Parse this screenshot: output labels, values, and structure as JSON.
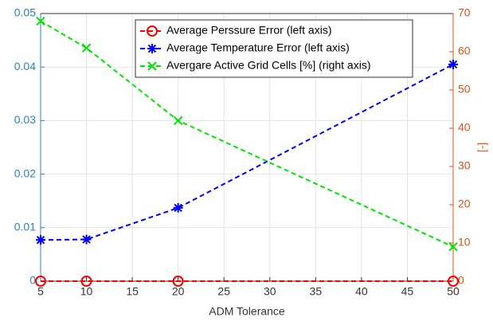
{
  "chart_data": {
    "type": "line",
    "x": [
      5,
      10,
      20,
      50
    ],
    "xlim": [
      5,
      50
    ],
    "xticks": [
      5,
      10,
      15,
      20,
      25,
      30,
      35,
      40,
      45,
      50
    ],
    "ylim": [
      0,
      0.05
    ],
    "yticks": [
      0,
      0.01,
      0.02,
      0.03,
      0.04,
      0.05
    ],
    "y2lim": [
      0,
      70
    ],
    "y2ticks": [
      0,
      10,
      20,
      30,
      40,
      50,
      60,
      70
    ],
    "xlabel": "ADM Tolerance",
    "y2label": "[-]",
    "left_axis_color": "#2f82c0",
    "right_axis_color": "#d95319",
    "grid": true,
    "legend": "top",
    "series": [
      {
        "name": "Average Perssure Error (left axis)",
        "color": "#ff0000",
        "marker": "o",
        "values": [
          0,
          0,
          0,
          0
        ]
      },
      {
        "name": "Average Temperature Error (left axis)",
        "color": "#0000ff",
        "marker": "*",
        "values": [
          0.0077,
          0.0078,
          0.0137,
          0.0405
        ]
      },
      {
        "name": "Avergare Active Grid Cells [%] (right axis)",
        "color": "#00e600",
        "marker": "x",
        "axis": "y2",
        "values": [
          68,
          61,
          42,
          9
        ]
      }
    ]
  }
}
